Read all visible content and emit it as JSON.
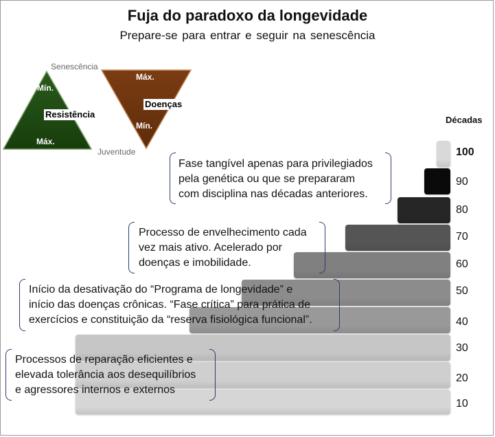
{
  "title": "Fuja do paradoxo da longevidade",
  "subtitle": "Prepare-se para entrar e seguir na senescência",
  "triangles": {
    "top_label": "Senescência",
    "bottom_label": "Juventude",
    "resistance": {
      "label": "Resistência",
      "min": "Mín.",
      "max": "Máx.",
      "color": "#1e4a12"
    },
    "diseases": {
      "label": "Doenças",
      "min": "Mín.",
      "max": "Máx.",
      "color": "#6b3410"
    }
  },
  "decades_header": "Décadas",
  "decades": [
    {
      "label": "100",
      "color": "#d9d9d9"
    },
    {
      "label": "90",
      "color": "#0a0a0a"
    },
    {
      "label": "80",
      "color": "#262626"
    },
    {
      "label": "70",
      "color": "#555555"
    },
    {
      "label": "60",
      "color": "#808080"
    },
    {
      "label": "50",
      "color": "#8c8c8c"
    },
    {
      "label": "40",
      "color": "#999999"
    },
    {
      "label": "30",
      "color": "#c6c6c6"
    },
    {
      "label": "20",
      "color": "#cfcfcf"
    },
    {
      "label": "10",
      "color": "#d6d6d6"
    }
  ],
  "notes": [
    {
      "lines": [
        "Fase tangível apenas para privilegiados",
        "pela genética ou que se prepararam",
        "com disciplina nas décadas anteriores."
      ]
    },
    {
      "lines": [
        "Processo de envelhecimento cada",
        "vez mais ativo. Acelerado por",
        "doenças e imobilidade."
      ]
    },
    {
      "lines": [
        "Início da desativação do “Programa de longevidade” e",
        "início das doenças crônicas. “Fase crítica” para prática de",
        "exercícios e constituição da “reserva fisiológica funcional”."
      ]
    },
    {
      "lines": [
        "Processos de reparação eficientes e",
        "elevada tolerância aos desequilíbrios",
        "e agressores internos e externos"
      ]
    }
  ]
}
